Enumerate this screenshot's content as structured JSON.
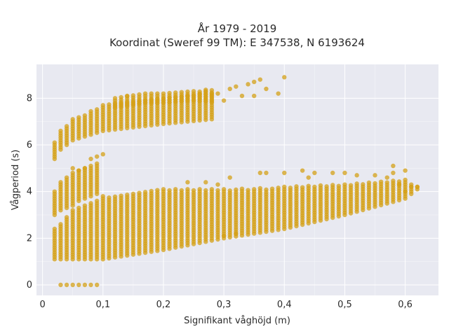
{
  "chart_data": {
    "type": "scatter",
    "title_line1": "År 1979 - 2019",
    "title_line2": "Koordinat (Sweref 99 TM): E 347538, N 6193624",
    "xlabel": "Signifikant våghöjd (m)",
    "ylabel": "Vågperiod (s)",
    "xlim": [
      -0.01,
      0.655
    ],
    "ylim": [
      -0.45,
      9.45
    ],
    "x_ticks": [
      0,
      0.1,
      0.2,
      0.3,
      0.4,
      0.5,
      0.6
    ],
    "x_tick_labels": [
      "0",
      "0,1",
      "0,2",
      "0,3",
      "0,4",
      "0,5",
      "0,6"
    ],
    "y_ticks": [
      0,
      2,
      4,
      6,
      8
    ],
    "y_tick_labels": [
      "0",
      "2",
      "4",
      "6",
      "8"
    ],
    "grid": true,
    "marker_color": "#d4a017",
    "background_color": "#e8e9f1",
    "zero_period_x": [
      0.03,
      0.04,
      0.05,
      0.06,
      0.07,
      0.08,
      0.09
    ],
    "lower_band": {
      "x_start": 0.02,
      "x_end": 0.62,
      "x_step": 0.01,
      "x": [
        0.02,
        0.03,
        0.05,
        0.1,
        0.2,
        0.3,
        0.4,
        0.5,
        0.6,
        0.62
      ],
      "y_min": [
        1.1,
        1.1,
        1.1,
        1.1,
        1.5,
        2.0,
        2.4,
        3.0,
        3.7,
        4.1
      ],
      "y_max": [
        2.4,
        2.6,
        3.2,
        3.8,
        4.1,
        4.1,
        4.2,
        4.3,
        4.5,
        4.2
      ]
    },
    "lower_cluster": {
      "x": [
        0.02,
        0.03,
        0.04,
        0.05,
        0.06,
        0.07,
        0.08,
        0.09
      ],
      "y_min": [
        3.0,
        3.2,
        3.3,
        3.4,
        3.6,
        3.7,
        3.8,
        3.9
      ],
      "y_max": [
        4.0,
        4.4,
        4.6,
        4.8,
        4.9,
        5.0,
        5.1,
        5.2
      ]
    },
    "upper_band": {
      "x": [
        0.02,
        0.03,
        0.05,
        0.1,
        0.2,
        0.28
      ],
      "y_min": [
        5.4,
        5.8,
        6.2,
        6.6,
        6.9,
        7.1
      ],
      "y_max": [
        6.1,
        6.6,
        7.1,
        7.7,
        8.0,
        8.2
      ]
    },
    "upper_extra": {
      "x": [
        0.12,
        0.17,
        0.2,
        0.25,
        0.3,
        0.35,
        0.4
      ],
      "y_min": [
        7.6,
        7.8,
        7.8,
        7.9,
        7.8,
        8.0,
        8.2
      ],
      "y_max": [
        8.0,
        8.2,
        8.2,
        8.3,
        8.5,
        8.8,
        8.9
      ]
    },
    "outliers": [
      [
        0.14,
        8.1
      ],
      [
        0.24,
        8.1
      ],
      [
        0.26,
        8.2
      ],
      [
        0.27,
        8.3
      ],
      [
        0.29,
        8.2
      ],
      [
        0.31,
        8.4
      ],
      [
        0.32,
        8.5
      ],
      [
        0.34,
        8.6
      ],
      [
        0.35,
        8.7
      ],
      [
        0.36,
        8.8
      ],
      [
        0.37,
        8.4
      ],
      [
        0.39,
        8.2
      ],
      [
        0.4,
        8.9
      ],
      [
        0.33,
        8.1
      ],
      [
        0.3,
        7.9
      ],
      [
        0.35,
        8.1
      ],
      [
        0.08,
        5.4
      ],
      [
        0.09,
        5.5
      ],
      [
        0.1,
        5.6
      ],
      [
        0.05,
        5.0
      ],
      [
        0.06,
        4.9
      ],
      [
        0.07,
        5.0
      ],
      [
        0.36,
        4.8
      ],
      [
        0.37,
        4.8
      ],
      [
        0.24,
        4.4
      ],
      [
        0.31,
        4.6
      ],
      [
        0.4,
        4.8
      ],
      [
        0.43,
        4.9
      ],
      [
        0.45,
        4.8
      ],
      [
        0.48,
        4.8
      ],
      [
        0.5,
        4.8
      ],
      [
        0.52,
        4.7
      ],
      [
        0.55,
        4.7
      ],
      [
        0.57,
        4.6
      ],
      [
        0.58,
        5.1
      ],
      [
        0.6,
        4.9
      ],
      [
        0.58,
        4.8
      ],
      [
        0.44,
        4.6
      ],
      [
        0.29,
        4.3
      ],
      [
        0.27,
        4.4
      ],
      [
        0.61,
        4.2
      ],
      [
        0.62,
        4.2
      ],
      [
        0.59,
        4.3
      ],
      [
        0.3,
        2.1
      ],
      [
        0.32,
        2.2
      ],
      [
        0.6,
        4.0
      ]
    ]
  }
}
